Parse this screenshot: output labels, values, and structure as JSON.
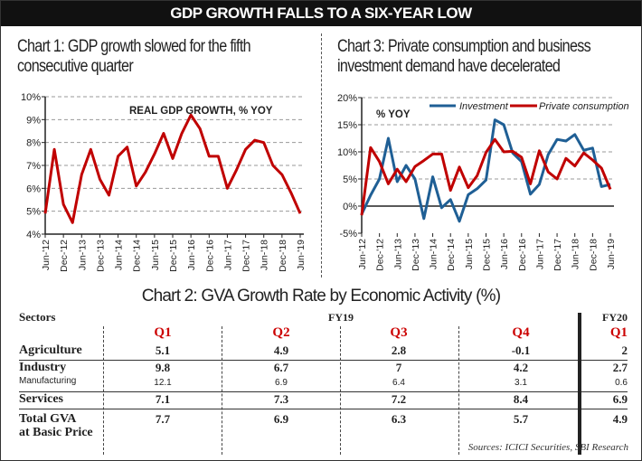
{
  "banner": "GDP GROWTH FALLS TO A SIX-YEAR LOW",
  "chart1_title": [
    "Chart 1: GDP growth slowed for the fifth",
    "consecutive quarter"
  ],
  "chart3_title": [
    "Chart 3: Private consumption and business",
    "investment demand have decelerated"
  ],
  "chart_data": [
    {
      "type": "line",
      "title": "Chart 1: GDP growth slowed for the fifth consecutive quarter",
      "annotation": "REAL GDP GROWTH, % YOY",
      "tick_labels": [
        "Jun-'12",
        "Dec-'12",
        "Jun-'13",
        "Dec-'13",
        "Jun-'14",
        "Dec-'14",
        "Jun-'15",
        "Dec-'15",
        "Jun-'16",
        "Dec-'16",
        "Jun-'17",
        "Dec-'17",
        "Jun-'18",
        "Dec-'18",
        "Jun-'19"
      ],
      "ylim": [
        4,
        10
      ],
      "yticks": [
        "4%",
        "5%",
        "6%",
        "7%",
        "8%",
        "9%",
        "10%"
      ],
      "grid": true,
      "color": "#c00000",
      "values": [
        4.9,
        7.7,
        5.3,
        4.5,
        6.6,
        7.7,
        6.4,
        5.7,
        7.4,
        7.8,
        6.1,
        6.7,
        7.5,
        8.4,
        7.3,
        8.4,
        9.2,
        8.6,
        7.4,
        7.4,
        6.0,
        6.8,
        7.7,
        8.1,
        8.0,
        7.0,
        6.6,
        5.8,
        4.9
      ]
    },
    {
      "type": "line",
      "title": "Chart 3: Private consumption and business investment demand have decelerated",
      "annotation": "% YOY",
      "legend": "top-right",
      "tick_labels": [
        "Jun-'12",
        "Dec-'12",
        "Jun-'13",
        "Dec-'13",
        "Jun-'14",
        "Dec-'14",
        "Jun-'15",
        "Dec-'15",
        "Jun-'16",
        "Dec-'16",
        "Jun-'17",
        "Dec-'17",
        "Jun-'18",
        "Dec-'18",
        "Jun-'19"
      ],
      "ylim": [
        -5,
        20
      ],
      "yticks": [
        "-5%",
        "0%",
        "5%",
        "10%",
        "15%",
        "20%"
      ],
      "grid": true,
      "series": [
        {
          "name": "Investment",
          "color": "#1f5f95",
          "values": [
            -1.5,
            2,
            5,
            12.5,
            4.5,
            7.5,
            5,
            -2.3,
            5.4,
            -0.3,
            1.2,
            -2.8,
            2.1,
            3.2,
            4.8,
            15.9,
            15.0,
            9.8,
            8.2,
            2.2,
            4.0,
            9.5,
            12.3,
            12.0,
            13.2,
            10.3,
            10.7,
            3.6,
            4.0
          ]
        },
        {
          "name": "Private consumption",
          "color": "#c00000",
          "values": [
            -1.7,
            10.8,
            8.2,
            4.1,
            6.8,
            4.5,
            7.3,
            8.4,
            9.6,
            9.6,
            2.9,
            7.2,
            3.4,
            5.6,
            9.9,
            12.3,
            10.0,
            10.1,
            9.0,
            4.1,
            10.2,
            6.3,
            5.0,
            8.8,
            7.4,
            9.8,
            8.5,
            7.0,
            3.1
          ]
        }
      ]
    },
    {
      "type": "table",
      "title": "Chart 2: GVA Growth Rate by Economic Activity (%)",
      "sectors_label": "Sectors",
      "fy19": "FY19",
      "fy20": "FY20",
      "quarters": [
        "Q1",
        "Q2",
        "Q3",
        "Q4",
        "Q1"
      ],
      "rows": [
        {
          "label": "Agriculture",
          "values": [
            "5.1",
            "4.9",
            "2.8",
            "-0.1",
            "2"
          ]
        },
        {
          "label": "Industry",
          "values": [
            "9.8",
            "6.7",
            "7",
            "4.2",
            "2.7"
          ]
        },
        {
          "label": "Manufacturing",
          "values": [
            "12.1",
            "6.9",
            "6.4",
            "3.1",
            "0.6"
          ]
        },
        {
          "label": "Services",
          "values": [
            "7.1",
            "7.3",
            "7.2",
            "8.4",
            "6.9"
          ]
        },
        {
          "label": "Total GVA",
          "label2": "at Basic Price",
          "values": [
            "7.7",
            "6.9",
            "6.3",
            "5.7",
            "4.9"
          ]
        }
      ],
      "source": "Sources: ICICI Securities, SBI Research"
    }
  ]
}
